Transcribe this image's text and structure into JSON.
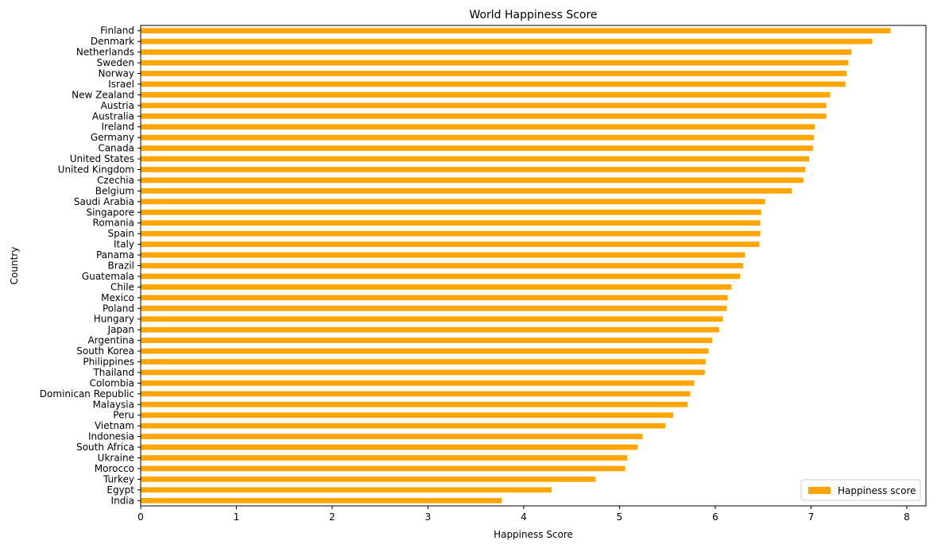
{
  "chart_data": {
    "type": "bar",
    "orientation": "horizontal",
    "title": "World Happiness Score",
    "xlabel": "Happiness Score",
    "ylabel": "Country",
    "xlim": [
      0,
      8.2
    ],
    "xticks": [
      "0",
      "1",
      "2",
      "3",
      "4",
      "5",
      "6",
      "7",
      "8"
    ],
    "grid": false,
    "legend_position": "bottom-right",
    "bar_color": "#FFA500",
    "categories": [
      "Finland",
      "Denmark",
      "Netherlands",
      "Sweden",
      "Norway",
      "Israel",
      "New Zealand",
      "Austria",
      "Australia",
      "Ireland",
      "Germany",
      "Canada",
      "United States",
      "United Kingdom",
      "Czechia",
      "Belgium",
      "Saudi Arabia",
      "Singapore",
      "Romania",
      "Spain",
      "Italy",
      "Panama",
      "Brazil",
      "Guatemala",
      "Chile",
      "Mexico",
      "Poland",
      "Hungary",
      "Japan",
      "Argentina",
      "South Korea",
      "Philippines",
      "Thailand",
      "Colombia",
      "Dominican Republic",
      "Malaysia",
      "Peru",
      "Vietnam",
      "Indonesia",
      "South Africa",
      "Ukraine",
      "Morocco",
      "Turkey",
      "Egypt",
      "India"
    ],
    "series": [
      {
        "name": "Happiness score",
        "values": [
          7.83,
          7.64,
          7.42,
          7.39,
          7.37,
          7.36,
          7.2,
          7.16,
          7.16,
          7.04,
          7.03,
          7.02,
          6.98,
          6.94,
          6.92,
          6.8,
          6.52,
          6.48,
          6.47,
          6.47,
          6.46,
          6.31,
          6.29,
          6.26,
          6.17,
          6.13,
          6.12,
          6.08,
          6.04,
          5.97,
          5.93,
          5.9,
          5.89,
          5.78,
          5.74,
          5.71,
          5.56,
          5.48,
          5.24,
          5.19,
          5.08,
          5.06,
          4.75,
          4.29,
          3.77
        ]
      }
    ]
  }
}
